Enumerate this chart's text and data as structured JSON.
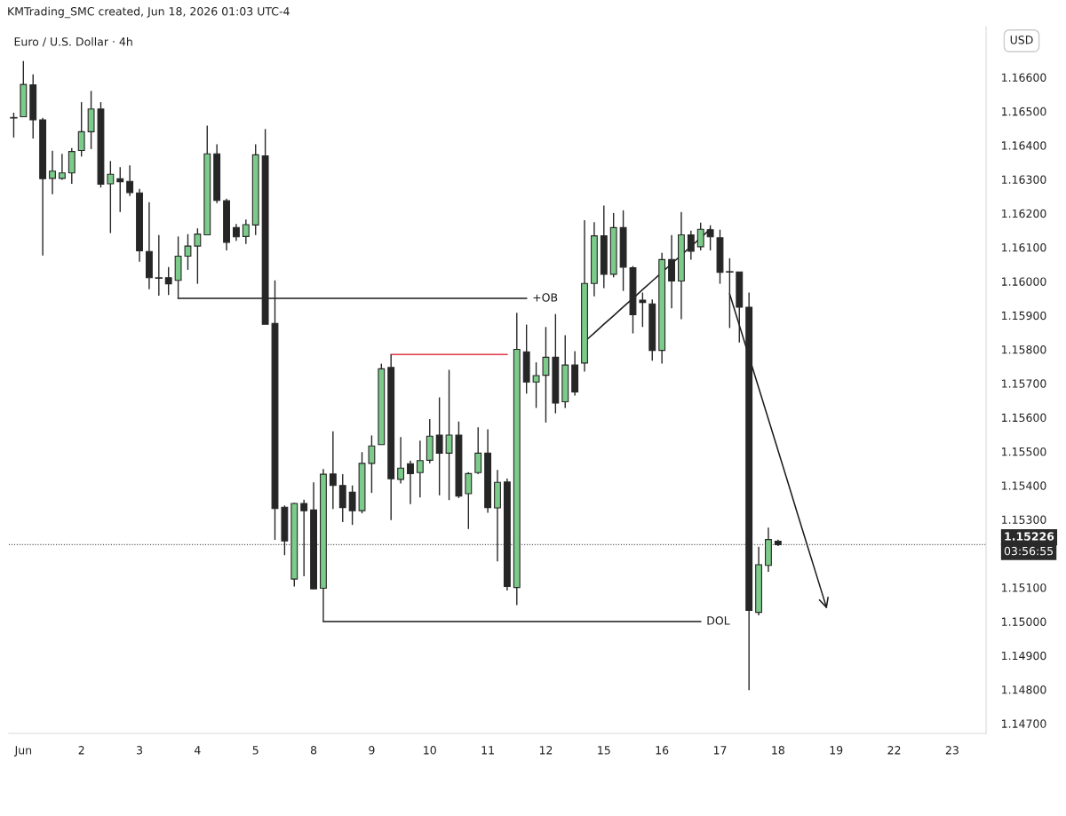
{
  "chart_data": {
    "type": "candlestick",
    "title": "Euro / U.S. Dollar · 4h",
    "subtitle": "KMTrading_SMC created, Jun 18, 2026 01:03 UTC-4",
    "ylabel": "USD",
    "categories": [
      null,
      "Jun",
      null,
      null,
      null,
      null,
      null,
      "2",
      null,
      null,
      null,
      null,
      null,
      "3",
      null,
      null,
      null,
      null,
      null,
      "4",
      null,
      null,
      null,
      null,
      null,
      "5",
      null,
      null,
      null,
      null,
      null,
      "8",
      null,
      null,
      null,
      null,
      null,
      "9",
      null,
      null,
      null,
      null,
      null,
      "10",
      null,
      null,
      null,
      null,
      null,
      "11",
      null,
      null,
      null,
      null,
      null,
      "12",
      null,
      null,
      null,
      null,
      null,
      "15",
      null,
      null,
      null,
      null,
      null,
      "16",
      null,
      null,
      null,
      null,
      null,
      "17",
      null,
      null,
      null,
      null,
      null,
      "18",
      null,
      null,
      null,
      null,
      null,
      "19",
      null,
      null,
      null,
      null,
      null,
      "22",
      null,
      null,
      null,
      null,
      null,
      "23",
      null,
      null,
      null
    ],
    "ohlc": [
      [
        1.16481,
        1.16496,
        1.16423,
        1.16481
      ],
      [
        1.16484,
        1.16648,
        1.16484,
        1.16579
      ],
      [
        1.16578,
        1.16609,
        1.1642,
        1.16475
      ],
      [
        1.16475,
        1.16481,
        1.16076,
        1.16302
      ],
      [
        1.16303,
        1.16384,
        1.16256,
        1.16324
      ],
      [
        1.16303,
        1.16375,
        1.16299,
        1.16319
      ],
      [
        1.16319,
        1.16392,
        1.16287,
        1.16382
      ],
      [
        1.16385,
        1.16527,
        1.16367,
        1.1644
      ],
      [
        1.1644,
        1.1656,
        1.16389,
        1.16507
      ],
      [
        1.16507,
        1.16527,
        1.16276,
        1.16286
      ],
      [
        1.16287,
        1.16354,
        1.16142,
        1.16315
      ],
      [
        1.16302,
        1.16336,
        1.16204,
        1.16293
      ],
      [
        1.16294,
        1.16341,
        1.16251,
        1.16261
      ],
      [
        1.1626,
        1.16272,
        1.16058,
        1.1609
      ],
      [
        1.16088,
        1.16233,
        1.15977,
        1.16011
      ],
      [
        1.1601,
        1.16136,
        1.15958,
        1.1601
      ],
      [
        1.16011,
        1.16042,
        1.1596,
        1.15993
      ],
      [
        1.16003,
        1.16132,
        1.1595,
        1.16074
      ],
      [
        1.16074,
        1.16139,
        1.16034,
        1.16104
      ],
      [
        1.16104,
        1.16156,
        1.15993,
        1.16139
      ],
      [
        1.16137,
        1.16458,
        1.16137,
        1.16375
      ],
      [
        1.16375,
        1.16403,
        1.1623,
        1.16238
      ],
      [
        1.16237,
        1.16243,
        1.16091,
        1.16115
      ],
      [
        1.16158,
        1.16169,
        1.16119,
        1.16131
      ],
      [
        1.16132,
        1.16182,
        1.1611,
        1.16167
      ],
      [
        1.16166,
        1.16403,
        1.16136,
        1.16372
      ],
      [
        1.16369,
        1.16448,
        1.15874,
        1.15874
      ],
      [
        1.15876,
        1.16003,
        1.1524,
        1.15332
      ],
      [
        1.15336,
        1.15341,
        1.15195,
        1.15237
      ],
      [
        1.15125,
        1.15349,
        1.15103,
        1.15347
      ],
      [
        1.15347,
        1.15358,
        1.15133,
        1.15326
      ],
      [
        1.15328,
        1.15409,
        1.15094,
        1.15096
      ],
      [
        1.15098,
        1.15448,
        1.15,
        1.15433
      ],
      [
        1.15434,
        1.15559,
        1.15331,
        1.154
      ],
      [
        1.154,
        1.15433,
        1.15292,
        1.15335
      ],
      [
        1.1538,
        1.154,
        1.15284,
        1.15326
      ],
      [
        1.15326,
        1.15498,
        1.15318,
        1.15465
      ],
      [
        1.15465,
        1.15547,
        1.15378,
        1.15516
      ],
      [
        1.1552,
        1.15758,
        1.1552,
        1.15743
      ],
      [
        1.15747,
        1.15785,
        1.15298,
        1.1542
      ],
      [
        1.15418,
        1.15542,
        1.15406,
        1.15451
      ],
      [
        1.15464,
        1.15473,
        1.15345,
        1.15435
      ],
      [
        1.15438,
        1.15532,
        1.15365,
        1.15473
      ],
      [
        1.15474,
        1.15595,
        1.15465,
        1.15545
      ],
      [
        1.15548,
        1.15659,
        1.15371,
        1.15495
      ],
      [
        1.15495,
        1.1574,
        1.15357,
        1.15548
      ],
      [
        1.15548,
        1.15588,
        1.15363,
        1.15369
      ],
      [
        1.15376,
        1.15439,
        1.15272,
        1.15435
      ],
      [
        1.15438,
        1.15571,
        1.15433,
        1.15495
      ],
      [
        1.15495,
        1.15565,
        1.1532,
        1.15335
      ],
      [
        1.15334,
        1.15446,
        1.15177,
        1.15409
      ],
      [
        1.1541,
        1.1542,
        1.15091,
        1.15103
      ],
      [
        1.151,
        1.15908,
        1.15048,
        1.158
      ],
      [
        1.15793,
        1.15873,
        1.1567,
        1.15704
      ],
      [
        1.15704,
        1.15762,
        1.15628,
        1.15723
      ],
      [
        1.15724,
        1.15866,
        1.15585,
        1.15777
      ],
      [
        1.15777,
        1.15904,
        1.15612,
        1.15642
      ],
      [
        1.15646,
        1.15842,
        1.15628,
        1.15754
      ],
      [
        1.15754,
        1.15795,
        1.15664,
        1.15675
      ],
      [
        1.1576,
        1.1618,
        1.15735,
        1.15994
      ],
      [
        1.15994,
        1.16174,
        1.15956,
        1.16134
      ],
      [
        1.16134,
        1.16223,
        1.1598,
        1.16021
      ],
      [
        1.16021,
        1.16201,
        1.16012,
        1.16158
      ],
      [
        1.16158,
        1.16209,
        1.15972,
        1.16042
      ],
      [
        1.1604,
        1.16045,
        1.15847,
        1.15902
      ],
      [
        1.15945,
        1.15967,
        1.15866,
        1.15938
      ],
      [
        1.15934,
        1.15947,
        1.15767,
        1.15797
      ],
      [
        1.15797,
        1.16084,
        1.15758,
        1.16064
      ],
      [
        1.16064,
        1.16136,
        1.15921,
        1.16001
      ],
      [
        1.16001,
        1.16204,
        1.15889,
        1.16137
      ],
      [
        1.16137,
        1.16149,
        1.16064,
        1.16089
      ],
      [
        1.16102,
        1.16173,
        1.16091,
        1.16153
      ],
      [
        1.16152,
        1.16165,
        1.16091,
        1.16131
      ],
      [
        1.16128,
        1.16152,
        1.15993,
        1.16027
      ],
      [
        1.16028,
        1.16068,
        1.15863,
        1.16028
      ],
      [
        1.16028,
        1.16028,
        1.1582,
        1.15924
      ],
      [
        1.15924,
        1.15967,
        1.14798,
        1.15033
      ],
      [
        1.15027,
        1.1522,
        1.15018,
        1.15167
      ],
      [
        1.15165,
        1.15276,
        1.15146,
        1.15241
      ],
      [
        1.15236,
        1.15241,
        1.15222,
        1.15226
      ],
      null,
      null,
      null,
      null,
      null,
      null,
      null,
      null,
      null,
      null,
      null,
      null,
      null,
      null,
      null,
      null,
      null,
      null,
      null,
      null,
      null
    ],
    "colors": [
      "#262626",
      "#7ccb8a",
      "#262626",
      "#262626",
      "#7ccb8a",
      "#7ccb8a",
      "#7ccb8a",
      "#7ccb8a",
      "#7ccb8a",
      "#262626",
      "#7ccb8a",
      "#262626",
      "#262626",
      "#262626",
      "#262626",
      "#262626",
      "#262626",
      "#7ccb8a",
      "#7ccb8a",
      "#7ccb8a",
      "#7ccb8a",
      "#262626",
      "#262626",
      "#262626",
      "#7ccb8a",
      "#7ccb8a",
      "#262626",
      "#262626",
      "#262626",
      "#7ccb8a",
      "#262626",
      "#262626",
      "#7ccb8a",
      "#262626",
      "#262626",
      "#262626",
      "#7ccb8a",
      "#7ccb8a",
      "#7ccb8a",
      "#262626",
      "#7ccb8a",
      "#262626",
      "#7ccb8a",
      "#7ccb8a",
      "#262626",
      "#7ccb8a",
      "#262626",
      "#7ccb8a",
      "#7ccb8a",
      "#262626",
      "#7ccb8a",
      "#262626",
      "#7ccb8a",
      "#262626",
      "#7ccb8a",
      "#7ccb8a",
      "#262626",
      "#7ccb8a",
      "#262626",
      "#7ccb8a",
      "#7ccb8a",
      "#262626",
      "#7ccb8a",
      "#262626",
      "#262626",
      "#262626",
      "#262626",
      "#7ccb8a",
      "#262626",
      "#7ccb8a",
      "#262626",
      "#7ccb8a",
      "#262626",
      "#262626",
      "#262626",
      "#262626",
      "#262626",
      "#7ccb8a",
      "#7ccb8a",
      "#262626",
      null,
      null,
      null,
      null,
      null,
      null,
      null,
      null,
      null,
      null,
      null,
      null,
      null,
      null,
      null,
      null,
      null,
      null,
      null,
      null,
      null
    ],
    "series": [
      {
        "type": "line",
        "name": "+OB",
        "color": "#1a1a1a",
        "values": [
          null,
          null,
          null,
          null,
          null,
          null,
          null,
          null,
          null,
          null,
          null,
          null,
          null,
          null,
          null,
          null,
          null,
          1.1595,
          1.1595,
          1.1595,
          1.1595,
          1.1595,
          1.1595,
          1.1595,
          1.1595,
          1.1595,
          1.1595,
          1.1595,
          1.1595,
          1.1595,
          1.1595,
          1.1595,
          1.1595,
          1.1595,
          1.1595,
          1.1595,
          1.1595,
          1.1595,
          1.1595,
          1.1595,
          1.1595,
          1.1595,
          1.1595,
          1.1595,
          1.1595,
          1.1595,
          1.1595,
          1.1595,
          1.1595,
          1.1595,
          1.1595,
          1.1595,
          1.1595,
          1.1595,
          null,
          null,
          null,
          null,
          null,
          null,
          null,
          null,
          null,
          null,
          null,
          null,
          null,
          null,
          null,
          null,
          null,
          null,
          null,
          null,
          null,
          null,
          null,
          null,
          null,
          null,
          null,
          null,
          null,
          null,
          null,
          null,
          null,
          null,
          null,
          null,
          null,
          null,
          null,
          null,
          null,
          null,
          null,
          null,
          null,
          null,
          null
        ]
      },
      {
        "type": "line",
        "color": "#e0394a",
        "values": [
          null,
          null,
          null,
          null,
          null,
          null,
          null,
          null,
          null,
          null,
          null,
          null,
          null,
          null,
          null,
          null,
          null,
          null,
          null,
          null,
          null,
          null,
          null,
          null,
          null,
          null,
          null,
          null,
          null,
          null,
          null,
          null,
          null,
          null,
          null,
          null,
          null,
          null,
          null,
          1.15785,
          1.15785,
          1.15785,
          1.15785,
          1.15785,
          1.15785,
          1.15785,
          1.15785,
          1.15785,
          1.15785,
          1.15785,
          1.15785,
          1.15785,
          null,
          null,
          null,
          null,
          null,
          null,
          null,
          null,
          null,
          null,
          null,
          null,
          null,
          null,
          null,
          null,
          null,
          null,
          null,
          null,
          null,
          null,
          null,
          null,
          null,
          null,
          null,
          null,
          null,
          null,
          null,
          null,
          null,
          null,
          null,
          null,
          null,
          null,
          null,
          null,
          null,
          null,
          null,
          null,
          null,
          null,
          null,
          null,
          null
        ]
      },
      {
        "type": "line",
        "name": "DOL",
        "color": "#1a1a1a",
        "values": [
          null,
          null,
          null,
          null,
          null,
          null,
          null,
          null,
          null,
          null,
          null,
          null,
          null,
          null,
          null,
          null,
          null,
          null,
          null,
          null,
          null,
          null,
          null,
          null,
          null,
          null,
          null,
          null,
          null,
          null,
          null,
          null,
          1.15,
          1.15,
          1.15,
          1.15,
          1.15,
          1.15,
          1.15,
          1.15,
          1.15,
          1.15,
          1.15,
          1.15,
          1.15,
          1.15,
          1.15,
          1.15,
          1.15,
          1.15,
          1.15,
          1.15,
          1.15,
          1.15,
          1.15,
          1.15,
          1.15,
          1.15,
          1.15,
          1.15,
          1.15,
          1.15,
          1.15,
          1.15,
          1.15,
          1.15,
          1.15,
          1.15,
          1.15,
          1.15,
          1.15,
          1.15,
          null,
          null,
          null,
          null,
          null,
          null,
          null,
          null,
          null,
          null,
          null,
          null,
          null,
          null,
          null,
          null,
          null,
          null,
          null,
          null,
          null,
          null,
          null,
          null,
          null,
          null,
          null,
          null,
          null
        ]
      },
      {
        "type": "line",
        "color": "#1a1a1a",
        "values": [
          null,
          null,
          null,
          null,
          null,
          null,
          null,
          null,
          null,
          null,
          null,
          null,
          null,
          null,
          null,
          null,
          null,
          null,
          null,
          null,
          null,
          null,
          null,
          null,
          null,
          null,
          null,
          null,
          null,
          null,
          null,
          null,
          null,
          null,
          null,
          null,
          null,
          null,
          null,
          null,
          null,
          null,
          null,
          null,
          null,
          null,
          null,
          null,
          null,
          null,
          null,
          null,
          null,
          null,
          null,
          null,
          null,
          null,
          null,
          1.15823,
          1.15848,
          1.15874,
          1.15899,
          1.15925,
          1.1595,
          1.15976,
          1.16001,
          1.16027,
          1.16052,
          1.16077,
          1.16103,
          1.16128,
          1.16154,
          null,
          null,
          null,
          null,
          null,
          null,
          null,
          null,
          null,
          null,
          null,
          null,
          null,
          null,
          null,
          null,
          null,
          null,
          null,
          null,
          null,
          null,
          null,
          null,
          null,
          null,
          null,
          null
        ]
      },
      {
        "type": "line",
        "color": "#1a1a1a",
        "values": [
          null,
          null,
          null,
          null,
          null,
          null,
          null,
          null,
          null,
          null,
          null,
          null,
          null,
          null,
          null,
          null,
          null,
          null,
          null,
          null,
          null,
          null,
          null,
          null,
          null,
          null,
          null,
          null,
          null,
          null,
          null,
          null,
          null,
          null,
          null,
          null,
          null,
          null,
          null,
          null,
          null,
          null,
          null,
          null,
          null,
          null,
          null,
          null,
          null,
          null,
          null,
          null,
          null,
          null,
          null,
          null,
          null,
          null,
          null,
          null,
          null,
          null,
          null,
          null,
          null,
          null,
          null,
          null,
          null,
          null,
          null,
          null,
          null,
          null,
          1.15963,
          1.15871,
          1.15779,
          1.15687,
          1.15595,
          1.15503,
          1.15411,
          1.15318,
          1.15226,
          1.15134,
          1.15042,
          null,
          null,
          null,
          null,
          null,
          null,
          null,
          null,
          null,
          null,
          null,
          null,
          null,
          null,
          null,
          null
        ]
      }
    ],
    "annotations": [
      "03:56:55"
    ],
    "ref_lines": [
      {
        "axis": "y",
        "value": 1.15226,
        "label": "1.15226",
        "color": "#555555",
        "line_style": "dotted"
      }
    ],
    "ylim": [
      1.14671,
      1.16749
    ],
    "yticks": [
      {
        "value": 1.147,
        "label": "1.14700"
      },
      {
        "value": 1.148,
        "label": "1.14800"
      },
      {
        "value": 1.149,
        "label": "1.14900"
      },
      {
        "value": 1.15,
        "label": "1.15000"
      },
      {
        "value": 1.151,
        "label": "1.15100"
      },
      {
        "value": 1.153,
        "label": "1.15300"
      },
      {
        "value": 1.154,
        "label": "1.15400"
      },
      {
        "value": 1.155,
        "label": "1.15500"
      },
      {
        "value": 1.156,
        "label": "1.15600"
      },
      {
        "value": 1.157,
        "label": "1.15700"
      },
      {
        "value": 1.158,
        "label": "1.15800"
      },
      {
        "value": 1.159,
        "label": "1.15900"
      },
      {
        "value": 1.16,
        "label": "1.16000"
      },
      {
        "value": 1.161,
        "label": "1.16100"
      },
      {
        "value": 1.162,
        "label": "1.16200"
      },
      {
        "value": 1.163,
        "label": "1.16300"
      },
      {
        "value": 1.164,
        "label": "1.16400"
      },
      {
        "value": 1.165,
        "label": "1.16500"
      },
      {
        "value": 1.166,
        "label": "1.16600"
      }
    ],
    "grid": false,
    "legend": false
  }
}
